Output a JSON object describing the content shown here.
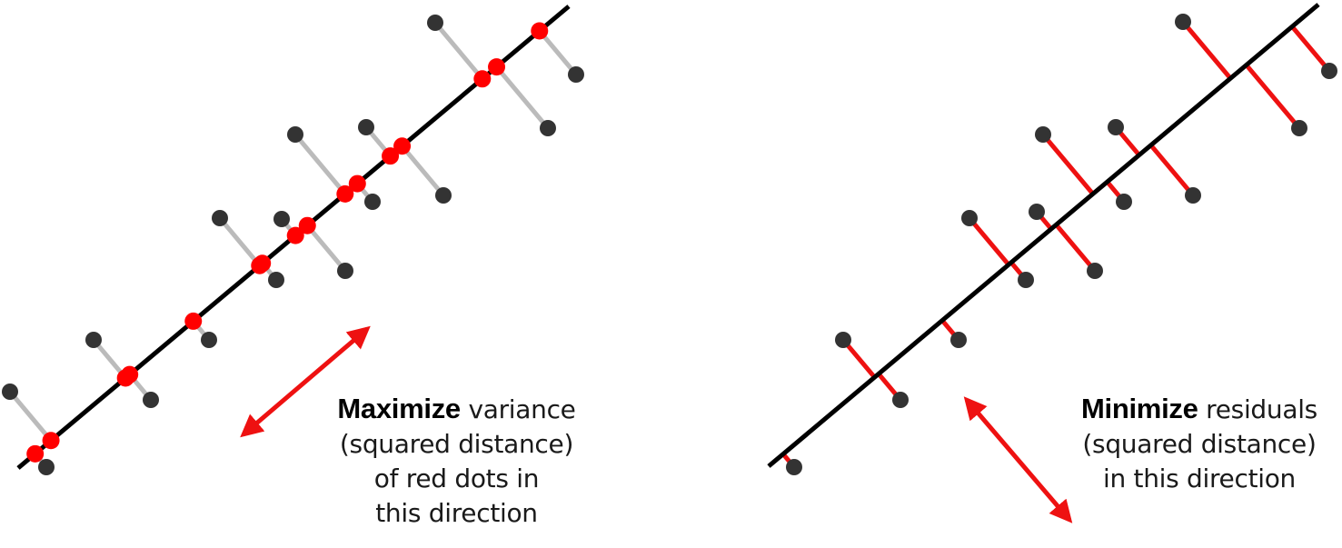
{
  "left_panel": {
    "caption": {
      "emphasis": "Maximize",
      "line1_rest": " variance",
      "line2": "(squared distance)",
      "line3": "of red dots in",
      "line4": "this direction"
    },
    "arrow_icon": "double-headed-arrow-icon"
  },
  "right_panel": {
    "caption": {
      "emphasis": "Minimize",
      "line1_rest": " residuals",
      "line2": "(squared distance)",
      "line3": "in this direction"
    },
    "arrow_icon": "double-headed-arrow-icon"
  },
  "colors": {
    "line": "#000000",
    "data_point": "#333333",
    "projected_point": "#ff0000",
    "projection_segment_left": "#bbbbbb",
    "residual_segment_right": "#ee1111",
    "arrow": "#ee1111"
  }
}
